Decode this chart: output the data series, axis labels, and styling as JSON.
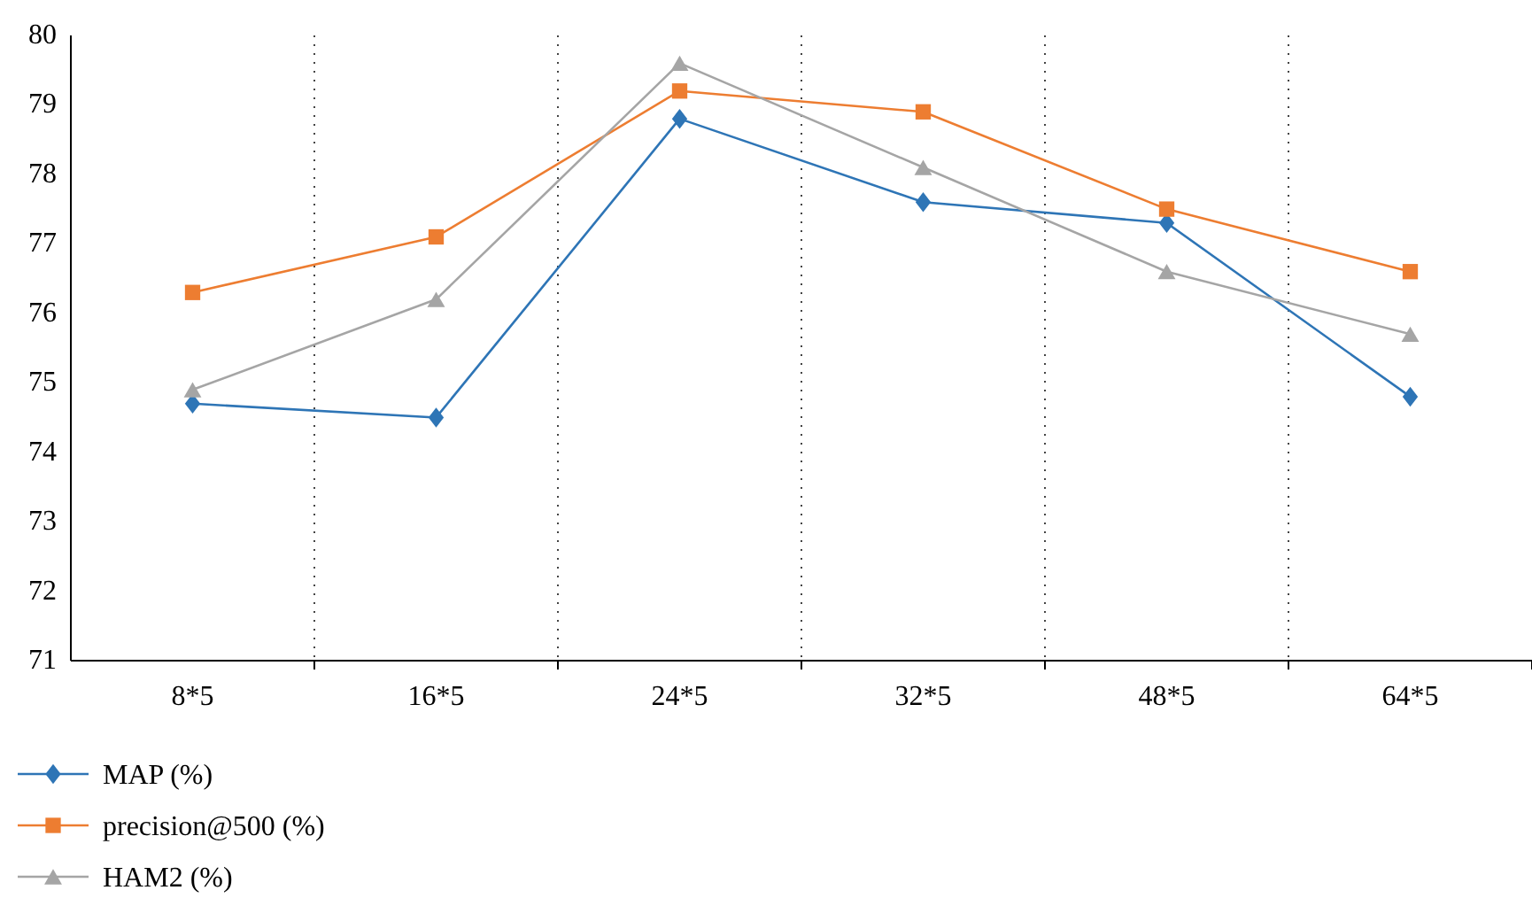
{
  "chart_data": {
    "type": "line",
    "categories": [
      "8*5",
      "16*5",
      "24*5",
      "32*5",
      "48*5",
      "64*5"
    ],
    "series": [
      {
        "name": "MAP (%)",
        "color": "#2e75b6",
        "marker": "diamond",
        "values": [
          74.7,
          74.5,
          78.8,
          77.6,
          77.3,
          74.8
        ]
      },
      {
        "name": "precision@500 (%)",
        "color": "#ed7d31",
        "marker": "square",
        "values": [
          76.3,
          77.1,
          79.2,
          78.9,
          77.5,
          76.6
        ]
      },
      {
        "name": "HAM2 (%)",
        "color": "#a5a5a5",
        "marker": "triangle",
        "values": [
          74.9,
          76.2,
          79.6,
          78.1,
          76.6,
          75.7
        ]
      }
    ],
    "ylim": [
      71,
      80
    ],
    "yticks": [
      71,
      72,
      73,
      74,
      75,
      76,
      77,
      78,
      79,
      80
    ],
    "grid": "x",
    "legend": "bottom"
  }
}
